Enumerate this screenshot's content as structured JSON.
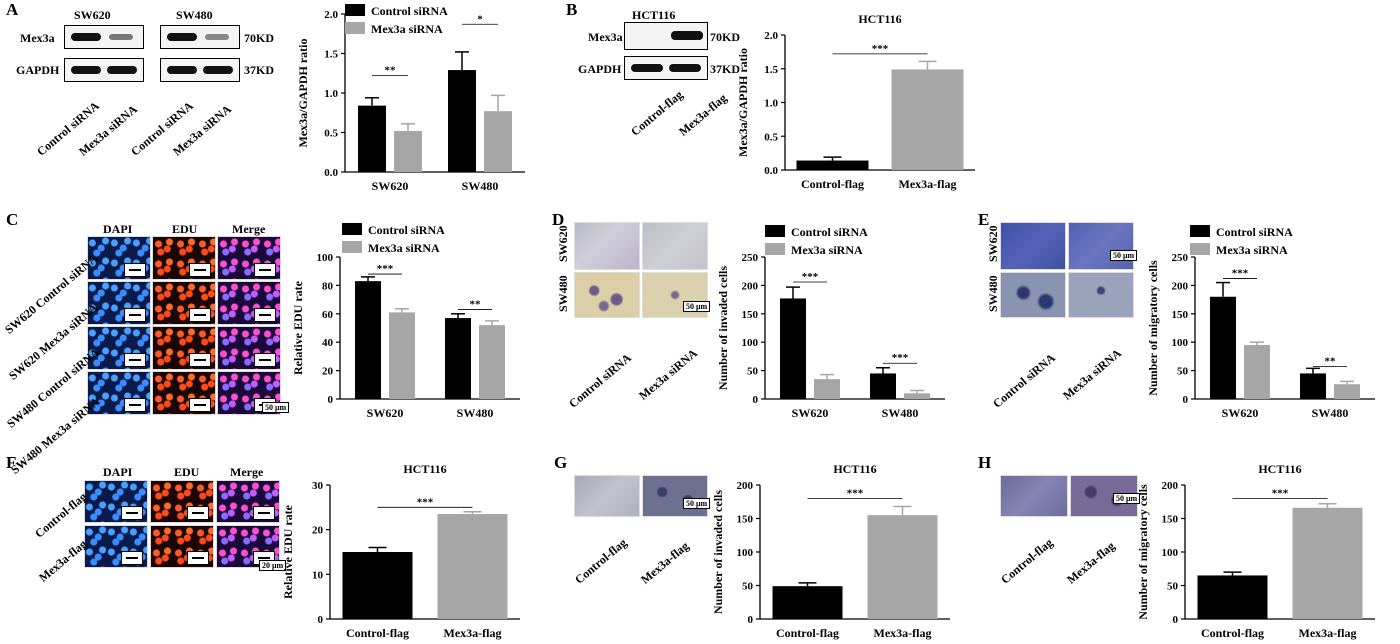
{
  "panels": {
    "A": "A",
    "B": "B",
    "C": "C",
    "D": "D",
    "E": "E",
    "F": "F",
    "G": "G",
    "H": "H"
  },
  "blotA": {
    "cell1": "SW620",
    "cell2": "SW480",
    "row1": "Mex3a",
    "row2": "GAPDH",
    "kd1": "70KD",
    "kd2": "37KD",
    "lanes": [
      "Control siRNA",
      "Mex3a siRNA",
      "Control siRNA",
      "Mex3a siRNA"
    ]
  },
  "blotB": {
    "cell": "HCT116",
    "row1": "Mex3a",
    "row2": "GAPDH",
    "kd1": "70KD",
    "kd2": "37KD",
    "lanes": [
      "Control-flag",
      "Mex3a-flag"
    ]
  },
  "imgC": {
    "cols": [
      "DAPI",
      "EDU",
      "Merge"
    ],
    "rows": [
      "SW620 Control siRNA",
      "SW620 Mex3a siRNA",
      "SW480 Control siRNA",
      "SW480 Mex3a siRNA"
    ],
    "scale": "50 μm"
  },
  "imgD": {
    "rows": [
      "SW620",
      "SW480"
    ],
    "cols": [
      "Control siRNA",
      "Mex3a siRNA"
    ],
    "scale": "50 μm"
  },
  "imgE": {
    "rows": [
      "SW620",
      "SW480"
    ],
    "cols": [
      "Control siRNA",
      "Mex3a siRNA"
    ],
    "scale": "50 μm"
  },
  "imgF": {
    "cols": [
      "DAPI",
      "EDU",
      "Merge"
    ],
    "rows": [
      "Control-flag",
      "Mex3a-flag"
    ],
    "scale": "20 μm"
  },
  "imgG": {
    "cols": [
      "Control-flag",
      "Mex3a-flag"
    ],
    "scale": "50 μm"
  },
  "imgH": {
    "cols": [
      "Control-flag",
      "Mex3a-flag"
    ],
    "scale": "50 μm"
  },
  "colors": {
    "black": "#000000",
    "gray": "#a6a6a6"
  },
  "chart_data": [
    {
      "id": "A",
      "type": "bar",
      "title": "",
      "ylabel": "Mex3a/GAPDH ratio",
      "ylim": [
        0,
        2.0
      ],
      "yticks": [
        0,
        0.5,
        1.0,
        1.5,
        2.0
      ],
      "ytick_labels": [
        "0.0",
        "0.5",
        "1.0",
        "1.5",
        "2.0"
      ],
      "categories": [
        "SW620",
        "SW480"
      ],
      "series": [
        {
          "name": "Control siRNA",
          "color": "#000000",
          "values": [
            0.84,
            1.29
          ],
          "errors": [
            0.1,
            0.23
          ]
        },
        {
          "name": "Mex3a siRNA",
          "color": "#a6a6a6",
          "values": [
            0.52,
            0.77
          ],
          "errors": [
            0.09,
            0.2
          ]
        }
      ],
      "sig": [
        {
          "cat": 0,
          "text": "**",
          "y": 1.22
        },
        {
          "cat": 1,
          "text": "*",
          "y": 1.87
        }
      ],
      "legend": "top-left"
    },
    {
      "id": "B",
      "type": "bar",
      "title": "HCT116",
      "ylabel": "Mex3a/GAPDH ratio",
      "ylim": [
        0,
        2.0
      ],
      "yticks": [
        0,
        0.5,
        1.0,
        1.5,
        2.0
      ],
      "ytick_labels": [
        "0.0",
        "0.5",
        "1.0",
        "1.5",
        "2.0"
      ],
      "categories": [
        "Control-flag",
        "Mex3a-flag"
      ],
      "series": [
        {
          "name": "",
          "colors": [
            "#000000",
            "#a6a6a6"
          ],
          "values": [
            0.14,
            1.49
          ],
          "errors": [
            0.05,
            0.12
          ]
        }
      ],
      "sig": [
        {
          "text": "***",
          "y": 1.72
        }
      ]
    },
    {
      "id": "C",
      "type": "bar",
      "title": "",
      "ylabel": "Relative EDU rate",
      "ylim": [
        0,
        100
      ],
      "yticks": [
        0,
        20,
        40,
        60,
        80,
        100
      ],
      "ytick_labels": [
        "0",
        "20",
        "40",
        "60",
        "80",
        "100"
      ],
      "categories": [
        "SW620",
        "SW480"
      ],
      "series": [
        {
          "name": "Control siRNA",
          "color": "#000000",
          "values": [
            83,
            57
          ],
          "errors": [
            3,
            3
          ]
        },
        {
          "name": "Mex3a siRNA",
          "color": "#a6a6a6",
          "values": [
            61,
            52
          ],
          "errors": [
            2.5,
            3
          ]
        }
      ],
      "sig": [
        {
          "cat": 0,
          "text": "***",
          "y": 88
        },
        {
          "cat": 1,
          "text": "**",
          "y": 63
        }
      ],
      "legend": "top-left"
    },
    {
      "id": "D",
      "type": "bar",
      "title": "",
      "ylabel": "Number of invaded cells",
      "ylim": [
        0,
        250
      ],
      "yticks": [
        0,
        50,
        100,
        150,
        200,
        250
      ],
      "ytick_labels": [
        "0",
        "50",
        "100",
        "150",
        "200",
        "250"
      ],
      "categories": [
        "SW620",
        "SW480"
      ],
      "series": [
        {
          "name": "Control siRNA",
          "color": "#000000",
          "values": [
            177,
            45
          ],
          "errors": [
            20,
            10
          ]
        },
        {
          "name": "Mex3a siRNA",
          "color": "#a6a6a6",
          "values": [
            35,
            10
          ],
          "errors": [
            8,
            5
          ]
        }
      ],
      "sig": [
        {
          "cat": 0,
          "text": "***",
          "y": 206
        },
        {
          "cat": 1,
          "text": "***",
          "y": 63
        }
      ],
      "legend": "top-left"
    },
    {
      "id": "E",
      "type": "bar",
      "title": "",
      "ylabel": "Number of migratory cells",
      "ylim": [
        0,
        250
      ],
      "yticks": [
        0,
        50,
        100,
        150,
        200,
        250
      ],
      "ytick_labels": [
        "0",
        "50",
        "100",
        "150",
        "200",
        "250"
      ],
      "categories": [
        "SW620",
        "SW480"
      ],
      "series": [
        {
          "name": "Control siRNA",
          "color": "#000000",
          "values": [
            180,
            45
          ],
          "errors": [
            25,
            9
          ]
        },
        {
          "name": "Mex3a siRNA",
          "color": "#a6a6a6",
          "values": [
            95,
            26
          ],
          "errors": [
            5,
            5
          ]
        }
      ],
      "sig": [
        {
          "cat": 0,
          "text": "***",
          "y": 212
        },
        {
          "cat": 1,
          "text": "**",
          "y": 57
        }
      ],
      "legend": "top-left"
    },
    {
      "id": "F",
      "type": "bar",
      "title": "HCT116",
      "ylabel": "Relative EDU rate",
      "ylim": [
        0,
        30
      ],
      "yticks": [
        0,
        10,
        20,
        30
      ],
      "ytick_labels": [
        "0",
        "10",
        "20",
        "30"
      ],
      "categories": [
        "Control-flag",
        "Mex3a-flag"
      ],
      "series": [
        {
          "name": "",
          "colors": [
            "#000000",
            "#a6a6a6"
          ],
          "values": [
            15,
            23.5
          ],
          "errors": [
            1.0,
            0.5
          ]
        }
      ],
      "sig": [
        {
          "text": "***",
          "y": 25
        }
      ]
    },
    {
      "id": "G",
      "type": "bar",
      "title": "HCT116",
      "ylabel": "Number of invaded cells",
      "ylim": [
        0,
        200
      ],
      "yticks": [
        0,
        50,
        100,
        150,
        200
      ],
      "ytick_labels": [
        "0",
        "50",
        "100",
        "150",
        "200"
      ],
      "categories": [
        "Control-flag",
        "Mex3a-flag"
      ],
      "series": [
        {
          "name": "",
          "colors": [
            "#000000",
            "#a6a6a6"
          ],
          "values": [
            49,
            155
          ],
          "errors": [
            5,
            13
          ]
        }
      ],
      "sig": [
        {
          "text": "***",
          "y": 180
        }
      ]
    },
    {
      "id": "H",
      "type": "bar",
      "title": "HCT116",
      "ylabel": "Number of migratory cells",
      "ylim": [
        0,
        200
      ],
      "yticks": [
        0,
        50,
        100,
        150,
        200
      ],
      "ytick_labels": [
        "0",
        "50",
        "100",
        "150",
        "200"
      ],
      "categories": [
        "Control-flag",
        "Mex3a-flag"
      ],
      "series": [
        {
          "name": "",
          "colors": [
            "#000000",
            "#a6a6a6"
          ],
          "values": [
            65,
            166
          ],
          "errors": [
            5,
            6
          ]
        }
      ],
      "sig": [
        {
          "text": "***",
          "y": 180
        }
      ]
    }
  ]
}
